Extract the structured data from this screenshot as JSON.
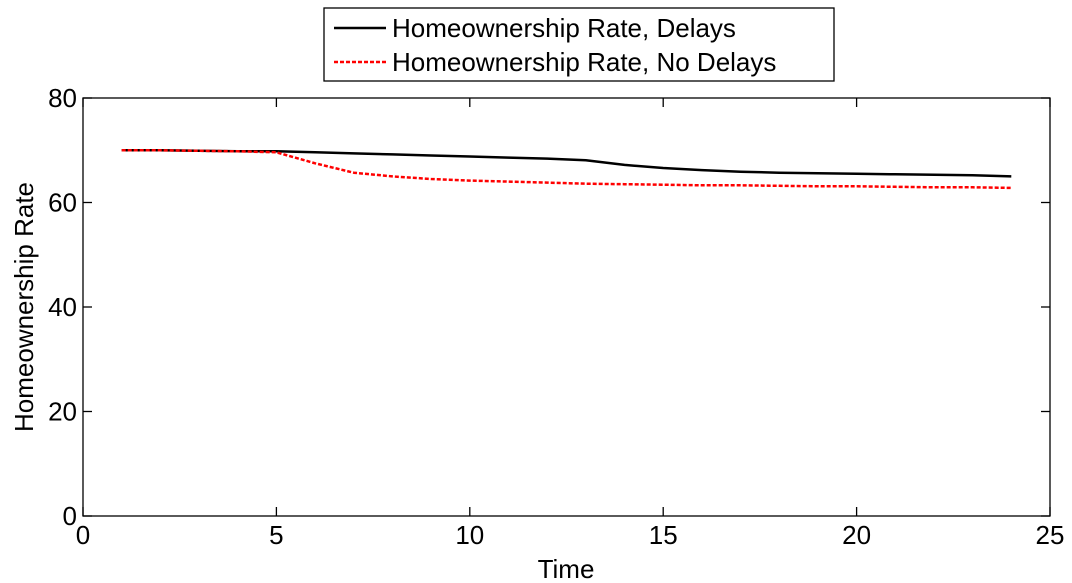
{
  "chart_data": {
    "type": "line",
    "title": "",
    "xlabel": "Time",
    "ylabel": "Homeownership Rate",
    "xlim": [
      0,
      25
    ],
    "ylim": [
      0,
      80
    ],
    "xticks": [
      0,
      5,
      10,
      15,
      20,
      25
    ],
    "yticks": [
      0,
      20,
      40,
      60,
      80
    ],
    "grid": false,
    "legend_position": "top-center-outside",
    "series": [
      {
        "name": "Homeownership Rate, Delays",
        "color": "#000000",
        "style": "solid",
        "x": [
          1,
          2,
          3,
          4,
          5,
          6,
          7,
          8,
          9,
          10,
          11,
          12,
          13,
          14,
          15,
          16,
          17,
          18,
          19,
          20,
          21,
          22,
          23,
          24
        ],
        "y": [
          70.0,
          70.0,
          69.9,
          69.8,
          69.8,
          69.6,
          69.4,
          69.2,
          69.0,
          68.8,
          68.6,
          68.4,
          68.1,
          67.2,
          66.6,
          66.2,
          65.9,
          65.7,
          65.6,
          65.5,
          65.4,
          65.3,
          65.2,
          65.0
        ]
      },
      {
        "name": "Homeownership Rate, No Delays",
        "color": "#ff0000",
        "style": "dashed",
        "x": [
          1,
          2,
          3,
          4,
          5,
          6,
          7,
          8,
          9,
          10,
          11,
          12,
          13,
          14,
          15,
          16,
          17,
          18,
          19,
          20,
          21,
          22,
          23,
          24
        ],
        "y": [
          70.0,
          70.0,
          69.9,
          69.8,
          69.6,
          67.5,
          65.7,
          65.0,
          64.5,
          64.2,
          64.0,
          63.8,
          63.6,
          63.5,
          63.4,
          63.3,
          63.3,
          63.2,
          63.1,
          63.1,
          63.0,
          62.9,
          62.9,
          62.8
        ]
      }
    ]
  }
}
